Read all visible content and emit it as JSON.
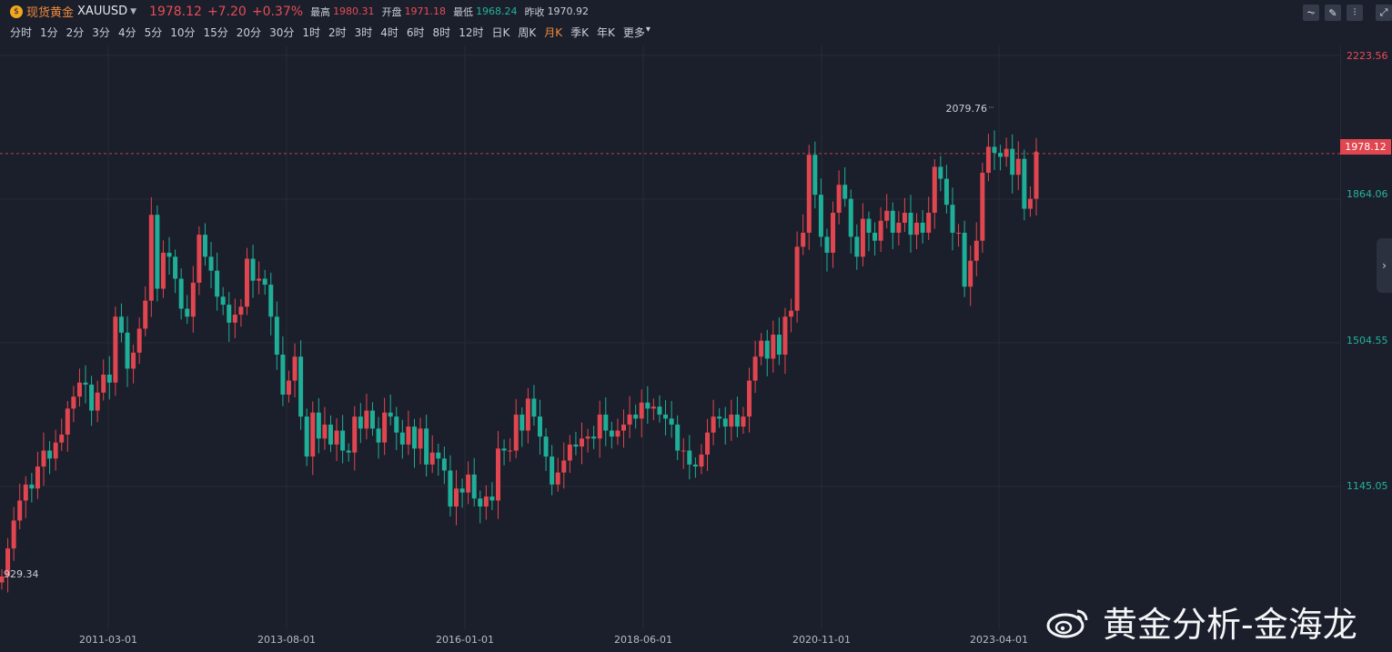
{
  "header": {
    "name": "现货黄金",
    "code": "XAUUSD",
    "price": "1978.12",
    "change": "+7.20",
    "change_pct": "+0.37%",
    "stats": [
      {
        "label": "最高",
        "value": "1980.31",
        "tone": "red"
      },
      {
        "label": "开盘",
        "value": "1971.18",
        "tone": "red"
      },
      {
        "label": "最低",
        "value": "1968.24",
        "tone": "green"
      },
      {
        "label": "昨收",
        "value": "1970.92",
        "tone": "gray"
      }
    ],
    "tool_icons": [
      "line-chart-icon",
      "draw-icon",
      "candle-settings-icon",
      "fullscreen-icon"
    ]
  },
  "periods": [
    "分时",
    "1分",
    "2分",
    "3分",
    "4分",
    "5分",
    "10分",
    "15分",
    "20分",
    "30分",
    "1时",
    "2时",
    "3时",
    "4时",
    "6时",
    "8时",
    "12时",
    "日K",
    "周K",
    "月K",
    "季K",
    "年K",
    "更多"
  ],
  "active_period": "月K",
  "watermark": "黄金分析-金海龙",
  "colors": {
    "up": "#e0464f",
    "down": "#1fae97",
    "bg": "#1b1f2b",
    "grid": "#262b36"
  },
  "chart_data": {
    "type": "candlestick",
    "x_ticks": [
      "2011-03-01",
      "2013-08-01",
      "2016-01-01",
      "2018-06-01",
      "2020-11-01",
      "2023-04-01"
    ],
    "y_ticks": [
      "2223.56",
      "1864.06",
      "1504.55",
      "1145.05"
    ],
    "ylim": [
      785.54,
      2223.56
    ],
    "last_price": "1978.12",
    "max_label": "2079.76",
    "min_label": "929.34",
    "grid": true,
    "closes": [
      920,
      990,
      1060,
      1110,
      1150,
      1140,
      1195,
      1235,
      1215,
      1255,
      1275,
      1340,
      1370,
      1405,
      1400,
      1335,
      1380,
      1425,
      1405,
      1570,
      1530,
      1440,
      1480,
      1540,
      1610,
      1825,
      1640,
      1730,
      1720,
      1665,
      1590,
      1570,
      1655,
      1775,
      1720,
      1685,
      1620,
      1600,
      1555,
      1575,
      1595,
      1715,
      1660,
      1665,
      1650,
      1570,
      1475,
      1375,
      1410,
      1470,
      1320,
      1220,
      1330,
      1265,
      1300,
      1250,
      1285,
      1235,
      1230,
      1320,
      1290,
      1335,
      1290,
      1255,
      1330,
      1320,
      1280,
      1250,
      1295,
      1240,
      1290,
      1200,
      1230,
      1215,
      1185,
      1095,
      1140,
      1130,
      1175,
      1115,
      1095,
      1120,
      1110,
      1240,
      1235,
      1235,
      1325,
      1285,
      1365,
      1320,
      1270,
      1220,
      1150,
      1180,
      1210,
      1250,
      1245,
      1265,
      1270,
      1265,
      1325,
      1285,
      1270,
      1285,
      1300,
      1325,
      1315,
      1355,
      1340,
      1345,
      1325,
      1315,
      1300,
      1235,
      1235,
      1200,
      1195,
      1225,
      1280,
      1320,
      1315,
      1295,
      1325,
      1295,
      1320,
      1410,
      1470,
      1510,
      1465,
      1525,
      1475,
      1570,
      1585,
      1745,
      1780,
      1975,
      1875,
      1770,
      1730,
      1830,
      1900,
      1865,
      1770,
      1720,
      1815,
      1780,
      1760,
      1810,
      1835,
      1780,
      1805,
      1830,
      1775,
      1805,
      1780,
      1830,
      1945,
      1915,
      1850,
      1780,
      1780,
      1645,
      1710,
      1760,
      1930,
      1995,
      1980,
      1970,
      1990,
      1925,
      1965,
      1840,
      1865,
      1978.12
    ]
  }
}
